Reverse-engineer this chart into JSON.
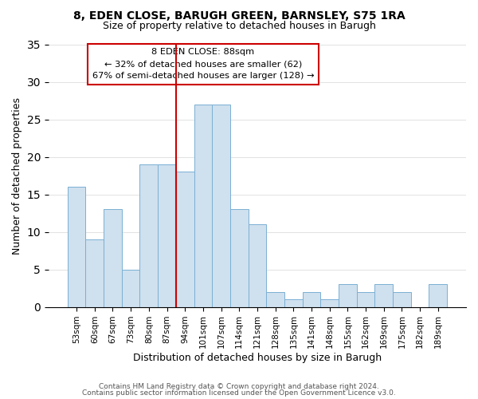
{
  "title1": "8, EDEN CLOSE, BARUGH GREEN, BARNSLEY, S75 1RA",
  "title2": "Size of property relative to detached houses in Barugh",
  "xlabel": "Distribution of detached houses by size in Barugh",
  "ylabel": "Number of detached properties",
  "footer1": "Contains HM Land Registry data © Crown copyright and database right 2024.",
  "footer2": "Contains public sector information licensed under the Open Government Licence v3.0.",
  "bar_labels": [
    "53sqm",
    "60sqm",
    "67sqm",
    "73sqm",
    "80sqm",
    "87sqm",
    "94sqm",
    "101sqm",
    "107sqm",
    "114sqm",
    "121sqm",
    "128sqm",
    "135sqm",
    "141sqm",
    "148sqm",
    "155sqm",
    "162sqm",
    "169sqm",
    "175sqm",
    "182sqm",
    "189sqm"
  ],
  "bar_values": [
    16,
    9,
    13,
    5,
    19,
    19,
    18,
    27,
    27,
    13,
    11,
    2,
    1,
    2,
    1,
    3,
    2,
    3,
    2,
    0,
    3
  ],
  "bar_color": "#cfe0ee",
  "bar_edge_color": "#7ab0d4",
  "annotation_title": "8 EDEN CLOSE: 88sqm",
  "annotation_line1": "← 32% of detached houses are smaller (62)",
  "annotation_line2": "67% of semi-detached houses are larger (128) →",
  "ylim": [
    0,
    35
  ],
  "yticks": [
    0,
    5,
    10,
    15,
    20,
    25,
    30,
    35
  ],
  "annotation_box_color": "white",
  "annotation_box_edge": "#cc0000",
  "ref_line_color": "#cc0000",
  "ref_line_index": 5
}
